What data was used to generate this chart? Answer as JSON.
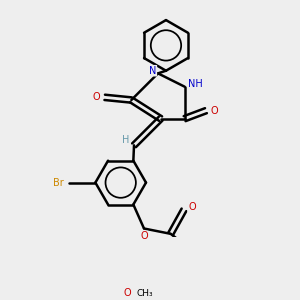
{
  "background_color": "#eeeeee",
  "atom_colors": {
    "C": "#000000",
    "H": "#6699aa",
    "N": "#0000cc",
    "O": "#cc0000",
    "Br": "#cc8800"
  },
  "bond_color": "#000000",
  "bond_width": 1.8,
  "figsize": [
    3.0,
    3.0
  ],
  "dpi": 100
}
